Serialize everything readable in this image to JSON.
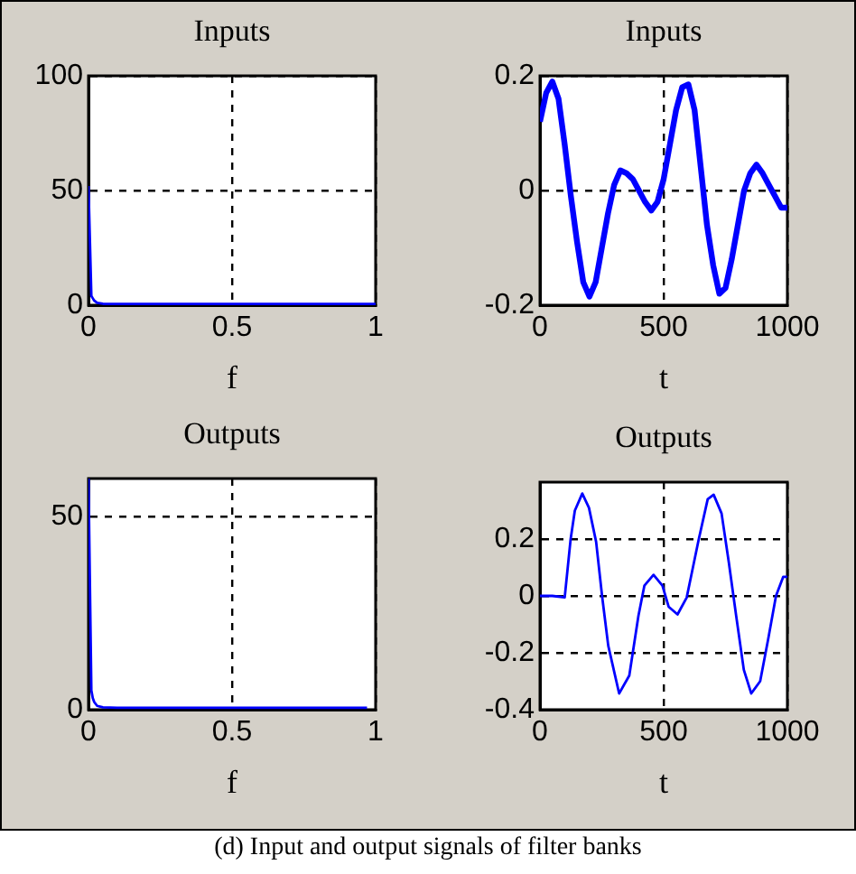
{
  "chart_data": [
    {
      "type": "line",
      "title": "Inputs",
      "xlabel": "f",
      "xlim": [
        0,
        1
      ],
      "xticks": [
        0,
        0.5,
        1
      ],
      "ylim": [
        0,
        100
      ],
      "yticks": [
        0,
        50,
        100
      ],
      "grid": true,
      "legend": false,
      "marker": "none",
      "line_style": "solid",
      "series": [
        {
          "color": "#0000ff",
          "x": [
            0,
            0.01,
            0.015,
            0.02,
            0.03,
            0.05,
            0.1,
            0.5,
            1
          ],
          "values": [
            52,
            4,
            3,
            2,
            1,
            0.6,
            0.5,
            0.5,
            0.5
          ]
        }
      ]
    },
    {
      "type": "line",
      "title": "Inputs",
      "xlabel": "t",
      "xlim": [
        0,
        1000
      ],
      "xticks": [
        0,
        500,
        1000
      ],
      "ylim": [
        -0.2,
        0.2
      ],
      "yticks": [
        -0.2,
        0,
        0.2
      ],
      "grid": true,
      "legend": false,
      "marker": "none",
      "line_style": "solid",
      "series": [
        {
          "color": "#0000ff",
          "x": [
            0,
            25,
            50,
            75,
            100,
            125,
            150,
            175,
            200,
            225,
            250,
            275,
            300,
            325,
            350,
            375,
            400,
            425,
            450,
            475,
            500,
            525,
            550,
            575,
            600,
            625,
            650,
            675,
            700,
            725,
            750,
            775,
            800,
            825,
            850,
            875,
            900,
            925,
            950,
            975,
            1000
          ],
          "values": [
            0.12,
            0.17,
            0.19,
            0.16,
            0.08,
            -0.01,
            -0.09,
            -0.16,
            -0.185,
            -0.16,
            -0.1,
            -0.04,
            0.01,
            0.035,
            0.03,
            0.02,
            0,
            -0.02,
            -0.035,
            -0.02,
            0.02,
            0.08,
            0.14,
            0.18,
            0.185,
            0.14,
            0.04,
            -0.06,
            -0.13,
            -0.18,
            -0.17,
            -0.12,
            -0.06,
            0,
            0.03,
            0.045,
            0.03,
            0.01,
            -0.01,
            -0.03,
            -0.03
          ]
        }
      ]
    },
    {
      "type": "line",
      "title": "Outputs",
      "xlabel": "f",
      "xlim": [
        0,
        1
      ],
      "xticks": [
        0,
        0.5,
        1
      ],
      "ylim": [
        0,
        60
      ],
      "yticks": [
        0,
        50
      ],
      "grid": true,
      "legend": false,
      "marker": "none",
      "line_style": "solid",
      "series": [
        {
          "color": "#0000ff",
          "x": [
            0,
            0.01,
            0.015,
            0.02,
            0.03,
            0.05,
            0.1,
            0.5,
            0.97
          ],
          "values": [
            60,
            5,
            3,
            2,
            1,
            0.6,
            0.5,
            0.5,
            0.5
          ]
        }
      ]
    },
    {
      "type": "line",
      "title": "Outputs",
      "xlabel": "t",
      "xlim": [
        0,
        1000
      ],
      "xticks": [
        0,
        500,
        1000
      ],
      "ylim": [
        -0.4,
        0.4
      ],
      "yticks": [
        -0.4,
        -0.2,
        0,
        0.2
      ],
      "grid": true,
      "legend": false,
      "marker": "none",
      "line_style": "solid",
      "annotations": [
        "(d) Input and output signals of filter banks"
      ],
      "series": [
        {
          "color": "#0000ff",
          "x": [
            0,
            50,
            100,
            124,
            141,
            171,
            198,
            227,
            251,
            276,
            320,
            361,
            398,
            422,
            459,
            495,
            520,
            556,
            593,
            641,
            678,
            702,
            734,
            763,
            793,
            824,
            854,
            890,
            922,
            954,
            983,
            1000
          ],
          "values": [
            0,
            0,
            -0.005,
            0.2,
            0.3,
            0.36,
            0.31,
            0.19,
            0,
            -0.175,
            -0.343,
            -0.28,
            -0.07,
            0.036,
            0.074,
            0.036,
            -0.038,
            -0.065,
            -0.006,
            0.196,
            0.34,
            0.356,
            0.29,
            0.12,
            -0.07,
            -0.26,
            -0.343,
            -0.3,
            -0.154,
            0,
            0.067,
            0.067
          ]
        }
      ]
    }
  ]
}
